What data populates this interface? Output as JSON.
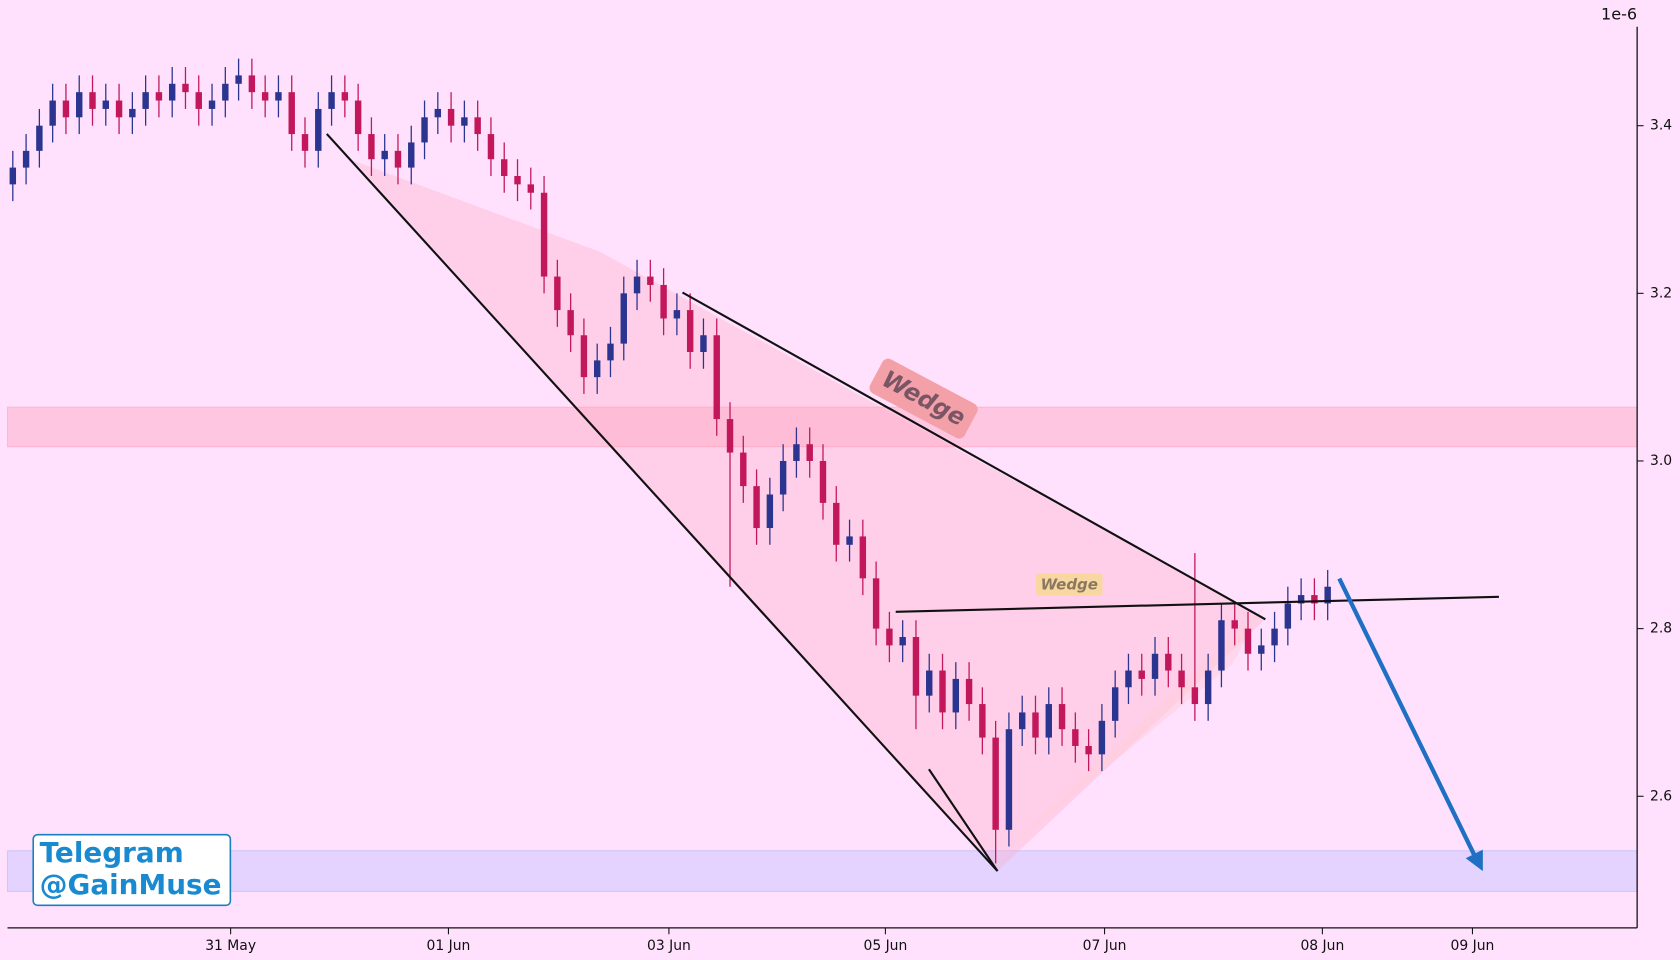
{
  "chart_data": {
    "type": "candlestick",
    "categories": [
      null,
      null,
      null,
      null,
      null,
      null,
      null,
      null,
      null,
      null,
      null,
      null,
      null,
      null,
      null,
      null,
      null,
      null,
      null,
      null,
      null,
      null,
      null,
      null,
      null,
      null,
      null,
      null,
      null,
      null,
      null,
      null,
      null,
      null,
      null,
      null,
      null,
      null,
      null,
      null,
      null,
      null,
      null,
      null,
      null,
      null,
      null,
      null,
      null,
      null,
      null,
      null,
      null,
      null,
      null,
      null,
      null,
      null,
      null,
      null,
      null,
      null,
      null,
      null,
      null,
      null,
      null,
      null,
      null,
      null,
      null,
      null,
      null,
      null,
      null,
      null,
      null,
      null,
      null,
      null,
      null,
      null,
      null,
      null,
      null,
      null,
      null,
      null,
      null,
      null,
      null,
      null,
      null,
      null,
      null,
      null,
      null,
      null,
      null,
      null
    ],
    "open": [
      3.33,
      3.35,
      3.37,
      3.4,
      3.43,
      3.41,
      3.44,
      3.42,
      3.43,
      3.41,
      3.42,
      3.44,
      3.43,
      3.45,
      3.44,
      3.42,
      3.43,
      3.45,
      3.46,
      3.44,
      3.43,
      3.44,
      3.39,
      3.37,
      3.42,
      3.44,
      3.43,
      3.39,
      3.36,
      3.37,
      3.35,
      3.38,
      3.41,
      3.42,
      3.4,
      3.41,
      3.39,
      3.36,
      3.34,
      3.33,
      3.32,
      3.22,
      3.18,
      3.15,
      3.1,
      3.12,
      3.14,
      3.2,
      3.22,
      3.21,
      3.17,
      3.18,
      3.13,
      3.15,
      3.05,
      3.01,
      2.97,
      2.92,
      2.96,
      3.0,
      3.02,
      3.0,
      2.95,
      2.9,
      2.91,
      2.86,
      2.8,
      2.78,
      2.79,
      2.72,
      2.75,
      2.7,
      2.74,
      2.71,
      2.67,
      2.56,
      2.68,
      2.7,
      2.67,
      2.71,
      2.68,
      2.66,
      2.65,
      2.69,
      2.73,
      2.75,
      2.74,
      2.77,
      2.75,
      2.73,
      2.71,
      2.75,
      2.81,
      2.8,
      2.77,
      2.78,
      2.8,
      2.83,
      2.84,
      2.83
    ],
    "high": [
      3.37,
      3.39,
      3.42,
      3.45,
      3.45,
      3.46,
      3.46,
      3.45,
      3.45,
      3.44,
      3.46,
      3.46,
      3.47,
      3.47,
      3.46,
      3.45,
      3.47,
      3.48,
      3.48,
      3.46,
      3.46,
      3.46,
      3.41,
      3.44,
      3.46,
      3.46,
      3.45,
      3.41,
      3.39,
      3.39,
      3.4,
      3.43,
      3.44,
      3.44,
      3.43,
      3.43,
      3.41,
      3.38,
      3.36,
      3.35,
      3.34,
      3.24,
      3.2,
      3.17,
      3.14,
      3.16,
      3.22,
      3.24,
      3.24,
      3.23,
      3.2,
      3.2,
      3.17,
      3.17,
      3.07,
      3.03,
      2.99,
      2.98,
      3.02,
      3.04,
      3.04,
      3.02,
      2.97,
      2.93,
      2.93,
      2.88,
      2.82,
      2.81,
      2.81,
      2.77,
      2.77,
      2.76,
      2.76,
      2.73,
      2.69,
      2.7,
      2.72,
      2.72,
      2.73,
      2.73,
      2.7,
      2.68,
      2.71,
      2.75,
      2.77,
      2.77,
      2.79,
      2.79,
      2.77,
      2.89,
      2.77,
      2.83,
      2.83,
      2.82,
      2.8,
      2.82,
      2.85,
      2.86,
      2.86,
      2.87
    ],
    "low": [
      3.31,
      3.33,
      3.35,
      3.38,
      3.39,
      3.39,
      3.4,
      3.4,
      3.39,
      3.39,
      3.4,
      3.41,
      3.41,
      3.42,
      3.4,
      3.4,
      3.41,
      3.43,
      3.42,
      3.41,
      3.41,
      3.37,
      3.35,
      3.35,
      3.4,
      3.41,
      3.37,
      3.34,
      3.34,
      3.33,
      3.33,
      3.36,
      3.39,
      3.38,
      3.38,
      3.37,
      3.34,
      3.32,
      3.31,
      3.3,
      3.2,
      3.16,
      3.13,
      3.08,
      3.08,
      3.1,
      3.12,
      3.18,
      3.19,
      3.15,
      3.15,
      3.11,
      3.11,
      3.03,
      2.85,
      2.95,
      2.9,
      2.9,
      2.94,
      2.98,
      2.98,
      2.93,
      2.88,
      2.88,
      2.84,
      2.78,
      2.76,
      2.76,
      2.68,
      2.7,
      2.68,
      2.68,
      2.69,
      2.65,
      2.52,
      2.54,
      2.66,
      2.65,
      2.65,
      2.66,
      2.64,
      2.63,
      2.63,
      2.67,
      2.71,
      2.72,
      2.72,
      2.73,
      2.71,
      2.69,
      2.69,
      2.73,
      2.78,
      2.75,
      2.75,
      2.76,
      2.78,
      2.81,
      2.81,
      2.81
    ],
    "close": [
      3.35,
      3.37,
      3.4,
      3.43,
      3.41,
      3.44,
      3.42,
      3.43,
      3.41,
      3.42,
      3.44,
      3.43,
      3.45,
      3.44,
      3.42,
      3.43,
      3.45,
      3.46,
      3.44,
      3.43,
      3.44,
      3.39,
      3.37,
      3.42,
      3.44,
      3.43,
      3.39,
      3.36,
      3.37,
      3.35,
      3.38,
      3.41,
      3.42,
      3.4,
      3.41,
      3.39,
      3.36,
      3.34,
      3.33,
      3.32,
      3.22,
      3.18,
      3.15,
      3.1,
      3.12,
      3.14,
      3.2,
      3.22,
      3.21,
      3.17,
      3.18,
      3.13,
      3.15,
      3.05,
      3.01,
      2.97,
      2.92,
      2.96,
      3.0,
      3.02,
      3.0,
      2.95,
      2.9,
      2.91,
      2.86,
      2.8,
      2.78,
      2.79,
      2.72,
      2.75,
      2.7,
      2.74,
      2.71,
      2.67,
      2.56,
      2.68,
      2.7,
      2.67,
      2.71,
      2.68,
      2.66,
      2.65,
      2.69,
      2.73,
      2.75,
      2.74,
      2.77,
      2.75,
      2.73,
      2.71,
      2.75,
      2.81,
      2.8,
      2.77,
      2.78,
      2.8,
      2.83,
      2.84,
      2.83,
      2.85
    ],
    "up_color": "#2b3590",
    "down_color": "#c2185b",
    "xlim": [
      -0.4,
      122.3
    ],
    "xticks": [
      {
        "value": 16.4,
        "label": "31 May"
      },
      {
        "value": 32.8,
        "label": "01 Jun"
      },
      {
        "value": 49.4,
        "label": "03 Jun"
      },
      {
        "value": 65.7,
        "label": "05 Jun"
      },
      {
        "value": 82.2,
        "label": "07 Jun"
      },
      {
        "value": 98.6,
        "label": "08 Jun"
      },
      {
        "value": 109.9,
        "label": "09 Jun"
      }
    ],
    "ylim": [
      2.443,
      3.518
    ],
    "yticks": [
      2.6,
      2.8,
      {
        "value": 3,
        "label": "3.0"
      },
      3.2,
      3.4
    ],
    "y_offset_label": "1e-6",
    "annotations": [
      "Wedge",
      "Wedge"
    ],
    "watermark": [
      "Telegram",
      "@GainMuse"
    ]
  }
}
